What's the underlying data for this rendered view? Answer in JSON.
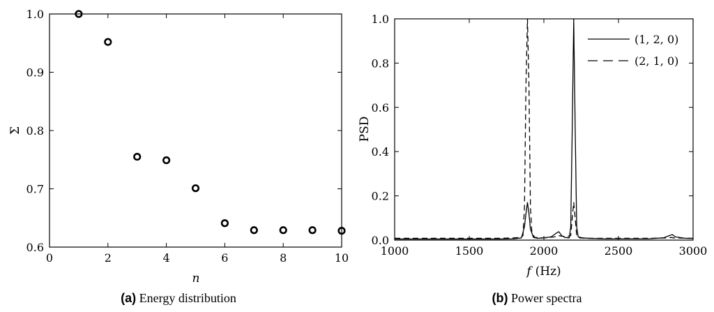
{
  "chart_data": [
    {
      "type": "scatter",
      "panel": "a",
      "xlabel": "n",
      "ylabel": "Σ",
      "xlim": [
        0,
        10
      ],
      "ylim": [
        0.6,
        1.0
      ],
      "xticks": [
        "0",
        "2",
        "4",
        "6",
        "8",
        "10"
      ],
      "yticks": [
        "0.6",
        "0.7",
        "0.8",
        "0.9",
        "1.0"
      ],
      "grid": false,
      "marker": "open-circle",
      "series": [
        {
          "x": [
            1,
            2,
            3,
            4,
            5,
            6,
            7,
            8,
            9,
            10
          ],
          "y": [
            1.0,
            0.952,
            0.755,
            0.749,
            0.701,
            0.641,
            0.629,
            0.629,
            0.629,
            0.628
          ]
        }
      ],
      "caption_label": "(a)",
      "caption_text": "Energy distribution"
    },
    {
      "type": "line",
      "panel": "b",
      "xlabel_symbol": "f",
      "xlabel_unit": "(Hz)",
      "ylabel": "PSD",
      "xlim": [
        1000,
        3000
      ],
      "ylim": [
        0,
        1.0
      ],
      "xticks": [
        "1000",
        "1500",
        "2000",
        "2500",
        "3000"
      ],
      "yticks": [
        "0.0",
        "0.2",
        "0.4",
        "0.6",
        "0.8",
        "1.0"
      ],
      "grid": false,
      "legend": "top-right",
      "series": [
        {
          "name": "(1, 2, 0)",
          "style": "solid",
          "x": [
            1000,
            1200,
            1400,
            1600,
            1700,
            1800,
            1850,
            1870,
            1880,
            1890,
            1900,
            1910,
            1930,
            1960,
            2000,
            2050,
            2080,
            2100,
            2120,
            2140,
            2170,
            2180,
            2190,
            2200,
            2210,
            2220,
            2230,
            2260,
            2300,
            2400,
            2500,
            2700,
            2800,
            2840,
            2860,
            2880,
            2950,
            3000
          ],
          "y": [
            0.005,
            0.005,
            0.005,
            0.005,
            0.005,
            0.006,
            0.01,
            0.06,
            0.12,
            0.17,
            0.12,
            0.05,
            0.012,
            0.008,
            0.01,
            0.015,
            0.03,
            0.038,
            0.02,
            0.012,
            0.01,
            0.06,
            0.5,
            1.0,
            0.5,
            0.06,
            0.015,
            0.01,
            0.008,
            0.006,
            0.006,
            0.006,
            0.01,
            0.02,
            0.025,
            0.015,
            0.008,
            0.007
          ]
        },
        {
          "name": "(2, 1, 0)",
          "style": "dashed",
          "x": [
            1000,
            1200,
            1400,
            1600,
            1700,
            1800,
            1840,
            1860,
            1870,
            1880,
            1890,
            1900,
            1910,
            1920,
            1940,
            2000,
            2080,
            2100,
            2150,
            2180,
            2190,
            2200,
            2210,
            2220,
            2240,
            2300,
            2500,
            2700,
            2830,
            2850,
            2870,
            3000
          ],
          "y": [
            0.008,
            0.008,
            0.008,
            0.008,
            0.008,
            0.01,
            0.012,
            0.02,
            0.15,
            0.7,
            1.0,
            0.7,
            0.15,
            0.03,
            0.012,
            0.01,
            0.015,
            0.02,
            0.015,
            0.02,
            0.1,
            0.17,
            0.1,
            0.02,
            0.01,
            0.008,
            0.008,
            0.008,
            0.01,
            0.012,
            0.01,
            0.008
          ]
        }
      ],
      "caption_label": "(b)",
      "caption_text": "Power spectra"
    }
  ]
}
